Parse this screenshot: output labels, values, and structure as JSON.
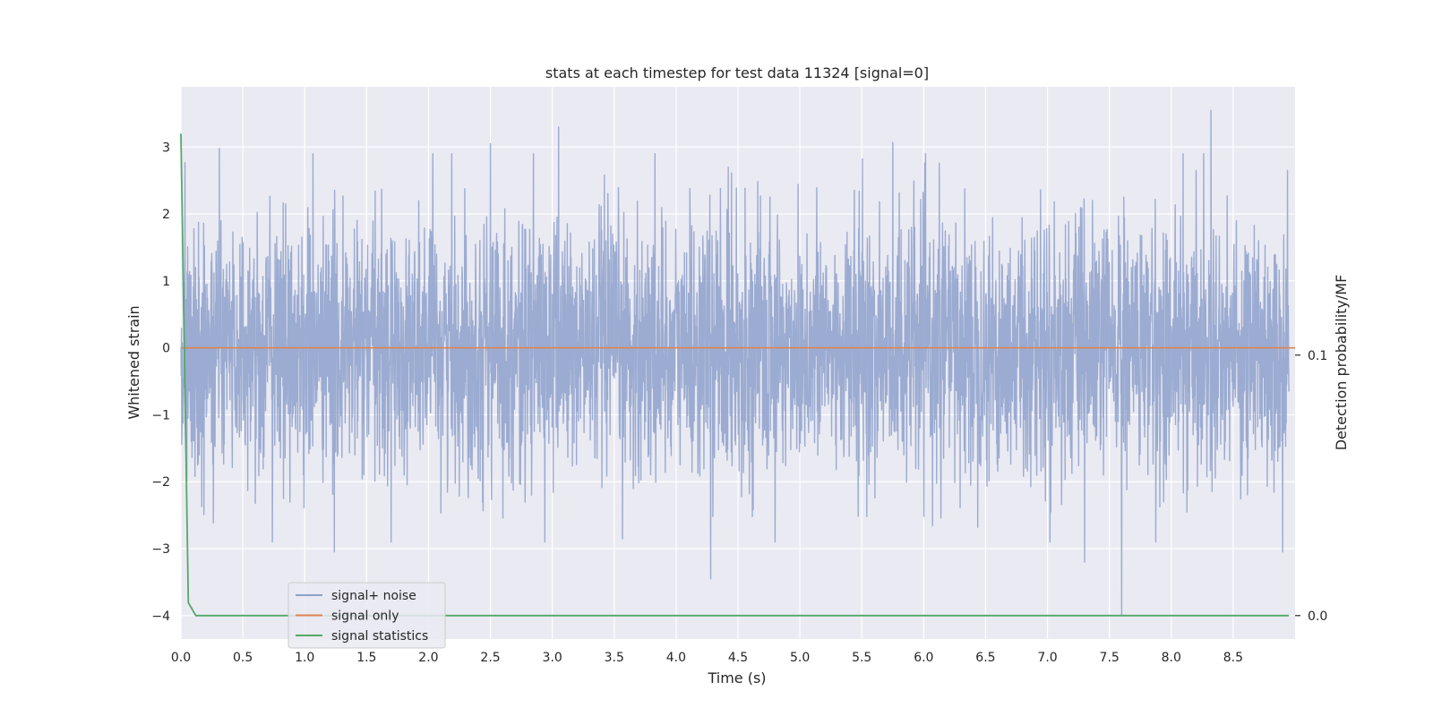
{
  "chart_data": {
    "type": "line",
    "title": "stats at each timestep for test data 11324 [signal=0]",
    "xlabel": "Time (s)",
    "ylabel": "Whitened strain",
    "y2label": "Detection probability/MF",
    "xlim": [
      0.0,
      9.0
    ],
    "ylim": [
      -4.35,
      3.9
    ],
    "y2lim": [
      -0.009,
      0.203
    ],
    "x_ticks": [
      "0.0",
      "0.5",
      "1.0",
      "1.5",
      "2.0",
      "2.5",
      "3.0",
      "3.5",
      "4.0",
      "4.5",
      "5.0",
      "5.5",
      "6.0",
      "6.5",
      "7.0",
      "7.5",
      "8.0",
      "8.5"
    ],
    "y_ticks": [
      "−4",
      "−3",
      "−2",
      "−1",
      "0",
      "1",
      "2",
      "3"
    ],
    "y2_ticks": [
      "0.0",
      "0.1"
    ],
    "grid": true,
    "legend_position": "lower-left",
    "series": [
      {
        "name": "signal+ noise",
        "color": "#8da0cb",
        "axis": "left",
        "description_range": [
          -3.5,
          3.5
        ],
        "samples": 4096,
        "notable_peaks": [
          {
            "x": 0.31,
            "y": 2.98
          },
          {
            "x": 2.5,
            "y": 3.05
          },
          {
            "x": 3.05,
            "y": 3.3
          },
          {
            "x": 5.75,
            "y": 3.07
          },
          {
            "x": 8.32,
            "y": 3.55
          },
          {
            "x": 8.2,
            "y": 2.65
          },
          {
            "x": 4.28,
            "y": -3.45
          },
          {
            "x": 7.3,
            "y": -3.2
          },
          {
            "x": 7.6,
            "y": -4.0
          },
          {
            "x": 8.9,
            "y": -3.05
          },
          {
            "x": 1.24,
            "y": -3.05
          },
          {
            "x": 4.8,
            "y": -2.9
          }
        ]
      },
      {
        "name": "signal only",
        "color": "#dd8452",
        "axis": "left",
        "x": [
          0.0,
          9.0
        ],
        "y": [
          0.0,
          0.0
        ]
      },
      {
        "name": "signal statistics",
        "color": "#55a868",
        "axis": "right",
        "x": [
          0.0,
          0.06,
          0.12,
          1.0,
          2.0,
          3.0,
          4.0,
          5.0,
          6.0,
          7.0,
          8.0,
          8.95
        ],
        "y": [
          0.185,
          0.005,
          0.0,
          0.0,
          0.0,
          0.0,
          0.0,
          0.0,
          0.0,
          0.0,
          0.0,
          0.0
        ]
      }
    ]
  }
}
